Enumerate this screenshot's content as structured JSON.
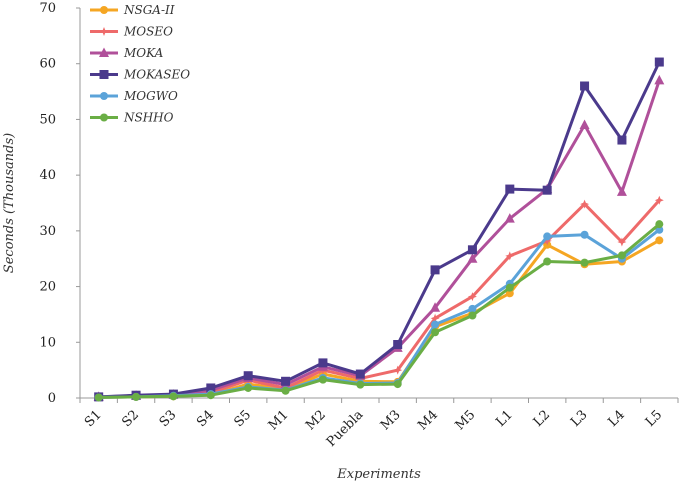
{
  "chart_data": {
    "type": "line",
    "title": "",
    "xlabel": "Experiments",
    "ylabel": "Seconds (Thousands)",
    "ylim": [
      0,
      70
    ],
    "yticks": [
      0,
      10,
      20,
      30,
      40,
      50,
      60,
      70
    ],
    "grid": false,
    "legend_position": "top-left",
    "categories": [
      "S1",
      "S2",
      "S3",
      "S4",
      "S5",
      "M1",
      "M2",
      "Puebla",
      "M3",
      "M4",
      "M5",
      "L1",
      "L2",
      "L3",
      "L4",
      "L5"
    ],
    "series": [
      {
        "name": "NSGA-II",
        "color": "#F5A623",
        "marker": "circle",
        "values": [
          0.1,
          0.2,
          0.3,
          0.6,
          2.5,
          1.6,
          4.3,
          3.0,
          2.9,
          12.8,
          15.2,
          18.8,
          27.5,
          24.0,
          24.5,
          28.3
        ]
      },
      {
        "name": "MOSEO",
        "color": "#EE6A6A",
        "marker": "star",
        "values": [
          0.1,
          0.3,
          0.5,
          1.0,
          3.2,
          1.8,
          5.0,
          3.5,
          5.0,
          14.3,
          18.2,
          25.5,
          28.2,
          34.8,
          28.0,
          35.5
        ]
      },
      {
        "name": "MOKA",
        "color": "#B0509A",
        "marker": "triangle",
        "values": [
          0.2,
          0.4,
          0.6,
          1.4,
          3.6,
          2.4,
          5.6,
          4.0,
          9.0,
          16.2,
          25.0,
          32.2,
          37.5,
          49.0,
          37.0,
          57.0
        ]
      },
      {
        "name": "MOKASEO",
        "color": "#4B3A8C",
        "marker": "square",
        "values": [
          0.2,
          0.5,
          0.7,
          1.8,
          4.0,
          3.0,
          6.3,
          4.3,
          9.6,
          23.0,
          26.6,
          37.5,
          37.3,
          56.0,
          46.3,
          60.3
        ]
      },
      {
        "name": "MOGWO",
        "color": "#5BA3D9",
        "marker": "circle",
        "values": [
          0.1,
          0.2,
          0.4,
          0.7,
          2.0,
          1.4,
          3.6,
          2.6,
          2.7,
          13.2,
          16.0,
          20.5,
          29.0,
          29.3,
          25.0,
          30.2
        ]
      },
      {
        "name": "NSHHO",
        "color": "#6AAE45",
        "marker": "circle",
        "values": [
          0.1,
          0.2,
          0.3,
          0.5,
          1.8,
          1.3,
          3.3,
          2.4,
          2.5,
          11.8,
          14.8,
          19.8,
          24.5,
          24.3,
          25.6,
          31.2
        ]
      }
    ]
  }
}
